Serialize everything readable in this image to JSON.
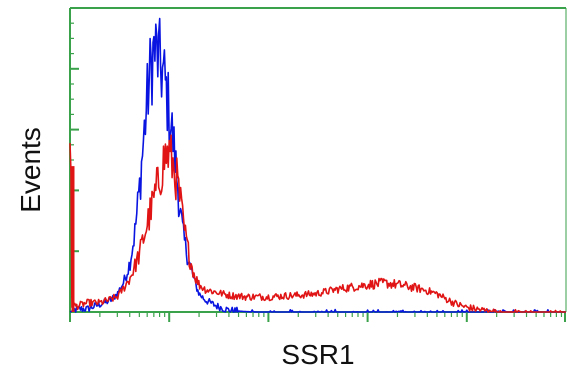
{
  "chart_data": {
    "type": "line",
    "title": "",
    "xlabel": "SSR1",
    "ylabel": "Events",
    "xscale": "log",
    "xlim": [
      1,
      100000
    ],
    "ylim": [
      0,
      100
    ],
    "grid": false,
    "legend": "none",
    "axis_color": "#3aa24a",
    "series": [
      {
        "color": "#0a14e0",
        "x": [
          1,
          1.2,
          1.5,
          1.8,
          2.2,
          2.6,
          3,
          3.5,
          4,
          4.5,
          5,
          5.5,
          6,
          6.5,
          7,
          7.5,
          8,
          9,
          10,
          11,
          12,
          13,
          14,
          16,
          18,
          20,
          23,
          26,
          30,
          35,
          40,
          50,
          60,
          80,
          100,
          200,
          1000,
          100000
        ],
        "y": [
          0,
          1,
          1,
          2,
          3,
          4,
          6,
          10,
          16,
          26,
          40,
          56,
          70,
          80,
          86,
          85,
          82,
          76,
          66,
          56,
          44,
          32,
          24,
          16,
          10,
          6,
          4,
          3,
          2,
          1.2,
          0.6,
          0.3,
          0.1,
          0,
          0,
          0,
          0,
          0
        ]
      },
      {
        "color": "#e01414",
        "x": [
          1,
          1.02,
          1.04,
          1.2,
          1.5,
          2,
          2.5,
          3,
          3.5,
          4,
          4.5,
          5,
          6,
          7,
          8,
          9,
          10,
          11,
          12,
          13,
          14,
          16,
          18,
          20,
          23,
          26,
          30,
          40,
          60,
          100,
          200,
          300,
          500,
          800,
          1000,
          1500,
          2000,
          3000,
          4000,
          5000,
          6000,
          8000,
          10000,
          15000,
          20000,
          30000,
          100000
        ],
        "y": [
          48,
          48,
          2,
          2,
          3,
          3,
          4,
          5,
          8,
          11,
          15,
          19,
          29,
          37,
          44,
          51,
          52,
          48,
          43,
          36,
          28,
          18,
          12,
          9,
          7.5,
          7,
          6.5,
          5.5,
          5,
          5,
          5.5,
          6,
          7.5,
          8.5,
          9,
          9.5,
          9,
          8,
          7,
          6,
          4.5,
          2.5,
          1.5,
          0.5,
          0,
          0,
          0
        ]
      }
    ]
  }
}
